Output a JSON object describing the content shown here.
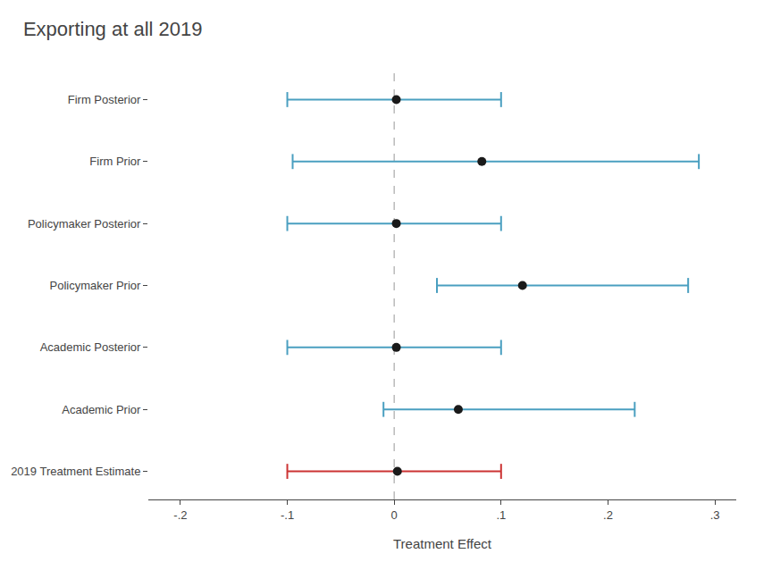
{
  "chart_data": {
    "type": "dot",
    "title": "Exporting at all 2019",
    "xlabel": "Treatment Effect",
    "orientation": "horizontal",
    "categories": [
      "Firm Posterior",
      "Firm Prior",
      "Policymaker Posterior",
      "Policymaker Prior",
      "Academic Posterior",
      "Academic Prior",
      "2019 Treatment Estimate"
    ],
    "values": [
      0.002,
      0.082,
      0.002,
      0.12,
      0.002,
      0.06,
      0.003
    ],
    "ci_low": [
      -0.1,
      -0.095,
      -0.1,
      0.04,
      -0.1,
      -0.01,
      -0.1
    ],
    "ci_high": [
      0.1,
      0.285,
      0.1,
      0.275,
      0.1,
      0.225,
      0.1
    ],
    "color": "#1a1a1a",
    "colors": [
      "#4a9fc0",
      "#4a9fc0",
      "#4a9fc0",
      "#4a9fc0",
      "#4a9fc0",
      "#4a9fc0",
      "#cc3333"
    ],
    "reference_line": 0.0,
    "xlim": [
      -0.23,
      0.32
    ],
    "xticks": [
      {
        "value": -0.2,
        "label": "-.2"
      },
      {
        "value": -0.1,
        "label": "-.1"
      },
      0,
      {
        "value": 0.1,
        "label": ".1"
      },
      {
        "value": 0.2,
        "label": ".2"
      },
      {
        "value": 0.3,
        "label": ".3"
      }
    ],
    "grid": false
  }
}
